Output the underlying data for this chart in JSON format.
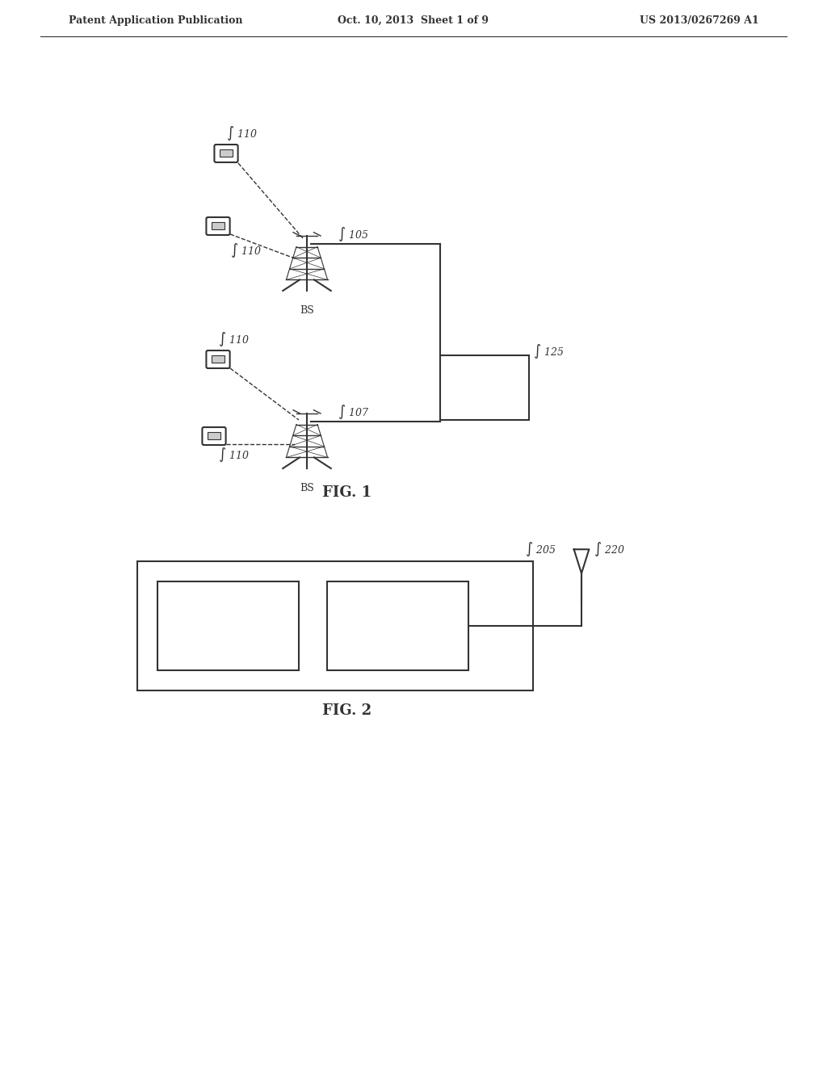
{
  "bg_color": "#ffffff",
  "header_left": "Patent Application Publication",
  "header_mid": "Oct. 10, 2013  Sheet 1 of 9",
  "header_right": "US 2013/0267269 A1",
  "fig1_label": "FIG. 1",
  "fig2_label": "FIG. 2",
  "line_color": "#333333",
  "text_color": "#333333"
}
